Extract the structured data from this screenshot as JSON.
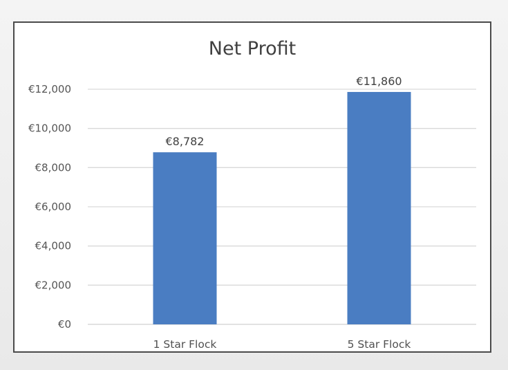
{
  "chart_data": {
    "type": "bar",
    "title": "Net Profit",
    "categories": [
      "1 Star Flock",
      "5 Star Flock"
    ],
    "values": [
      8782,
      11860
    ],
    "data_labels": [
      "€8,782",
      "€11,860"
    ],
    "ylim": [
      0,
      12000
    ],
    "yticks": [
      0,
      2000,
      4000,
      6000,
      8000,
      10000,
      12000
    ],
    "ytick_labels": [
      "€0",
      "€2,000",
      "€4,000",
      "€6,000",
      "€8,000",
      "€10,000",
      "€12,000"
    ],
    "xlabel": "",
    "ylabel": "",
    "grid": true,
    "legend": "none",
    "bar_color": "#4a7dc2",
    "grid_color": "#d9d9d9"
  }
}
